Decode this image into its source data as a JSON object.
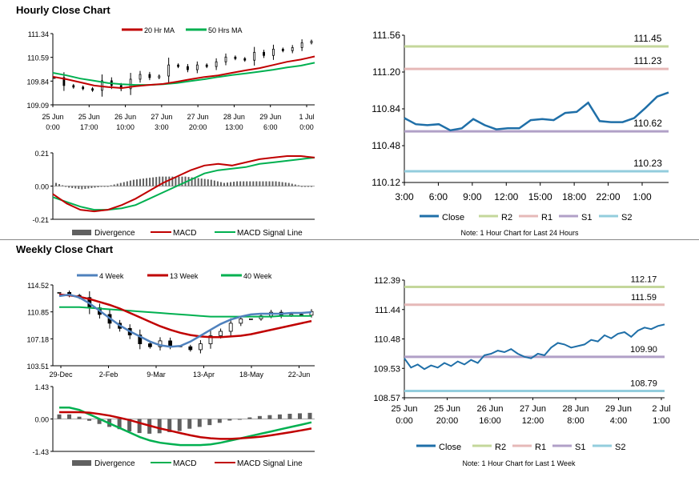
{
  "sections": {
    "hourly_title": "Hourly Close Chart",
    "weekly_title": "Weekly Close Chart"
  },
  "chart_data": [
    {
      "id": "hourly_price",
      "type": "line",
      "title": "Hourly Close Chart",
      "y_ticks": [
        "111.34",
        "110.59",
        "109.84",
        "109.09"
      ],
      "ylim": [
        109.09,
        111.34
      ],
      "x_ticks": [
        {
          "l1": "25 Jun",
          "l2": "0:00"
        },
        {
          "l1": "25 Jun",
          "l2": "17:00"
        },
        {
          "l1": "26 Jun",
          "l2": "10:00"
        },
        {
          "l1": "27 Jun",
          "l2": "3:00"
        },
        {
          "l1": "27 Jun",
          "l2": "20:00"
        },
        {
          "l1": "28 Jun",
          "l2": "13:00"
        },
        {
          "l1": "29 Jun",
          "l2": "6:00"
        },
        {
          "l1": "1 Jul",
          "l2": "0:00"
        }
      ],
      "legend": [
        "20 Hr MA",
        "50 Hrs MA"
      ],
      "colors": {
        "ma20": "#c00000",
        "ma50": "#00b050",
        "candle": "#000000"
      },
      "series": [
        {
          "name": "20 Hr MA",
          "values": [
            109.98,
            109.9,
            109.8,
            109.7,
            109.65,
            109.62,
            109.68,
            109.72,
            109.75,
            109.82,
            109.9,
            109.97,
            110.02,
            110.1,
            110.18,
            110.25,
            110.35,
            110.45,
            110.52,
            110.62
          ]
        },
        {
          "name": "50 Hrs MA",
          "values": [
            110.1,
            110.02,
            109.92,
            109.85,
            109.78,
            109.74,
            109.72,
            109.72,
            109.74,
            109.78,
            109.84,
            109.9,
            109.97,
            110.03,
            110.08,
            110.14,
            110.2,
            110.27,
            110.33,
            110.42
          ]
        },
        {
          "name": "Close",
          "values": [
            109.95,
            109.7,
            109.65,
            109.6,
            109.55,
            109.85,
            109.7,
            109.6,
            109.9,
            110.05,
            109.95,
            110.0,
            110.35,
            110.3,
            110.2,
            110.35,
            110.3,
            110.45,
            110.6,
            110.55,
            110.5,
            110.75,
            110.65,
            110.85,
            110.8,
            110.9,
            111.05,
            111.1
          ]
        }
      ]
    },
    {
      "id": "hourly_macd",
      "type": "line",
      "y_ticks": [
        "0.21",
        "0.00",
        "-0.21"
      ],
      "ylim": [
        -0.21,
        0.21
      ],
      "legend": [
        "Divergence",
        "MACD",
        "MACD Signal Line"
      ],
      "colors": {
        "divergence": "#606060",
        "macd": "#c00000",
        "signal": "#00b050"
      },
      "series": [
        {
          "name": "MACD",
          "values": [
            -0.05,
            -0.11,
            -0.15,
            -0.16,
            -0.15,
            -0.12,
            -0.08,
            -0.03,
            0.02,
            0.06,
            0.1,
            0.13,
            0.14,
            0.13,
            0.15,
            0.17,
            0.18,
            0.19,
            0.19,
            0.18
          ]
        },
        {
          "name": "MACD Signal Line",
          "values": [
            -0.07,
            -0.1,
            -0.13,
            -0.15,
            -0.15,
            -0.14,
            -0.12,
            -0.08,
            -0.04,
            0.0,
            0.04,
            0.08,
            0.1,
            0.11,
            0.12,
            0.14,
            0.15,
            0.16,
            0.17,
            0.18
          ]
        },
        {
          "name": "Divergence",
          "values": [
            0.02,
            -0.01,
            -0.02,
            -0.01,
            0.0,
            0.02,
            0.04,
            0.05,
            0.06,
            0.06,
            0.06,
            0.05,
            0.04,
            0.02,
            0.03,
            0.03,
            0.03,
            0.03,
            0.02,
            0.0
          ]
        }
      ]
    },
    {
      "id": "hourly_levels",
      "type": "line",
      "y_ticks": [
        "111.56",
        "111.20",
        "110.84",
        "110.48",
        "110.12"
      ],
      "ylim": [
        110.12,
        111.56
      ],
      "x_ticks": [
        "3:00",
        "6:00",
        "9:00",
        "12:00",
        "15:00",
        "18:00",
        "22:00",
        "1:00"
      ],
      "levels": [
        {
          "name": "R2",
          "value": 111.45,
          "label": "111.45",
          "color": "#c4d79b"
        },
        {
          "name": "R1",
          "value": 111.23,
          "label": "111.23",
          "color": "#e6b9b8"
        },
        {
          "name": "S1",
          "value": 110.62,
          "label": "110.62",
          "color": "#b1a0c7"
        },
        {
          "name": "S2",
          "value": 110.23,
          "label": "110.23",
          "color": "#93cddd"
        }
      ],
      "close": [
        110.75,
        110.69,
        110.68,
        110.69,
        110.63,
        110.65,
        110.74,
        110.68,
        110.64,
        110.65,
        110.65,
        110.73,
        110.74,
        110.73,
        110.8,
        110.81,
        110.9,
        110.72,
        110.71,
        110.71,
        110.75,
        110.85,
        110.96,
        111.0
      ],
      "close_color": "#1f6fa8",
      "legend": [
        "Close",
        "R2",
        "R1",
        "S1",
        "S2"
      ],
      "note": "Note: 1 Hour Chart for Last 24 Hours"
    },
    {
      "id": "weekly_price",
      "type": "line",
      "title": "Weekly Close Chart",
      "y_ticks": [
        "114.52",
        "110.85",
        "107.18",
        "103.51"
      ],
      "ylim": [
        103.51,
        114.52
      ],
      "x_ticks": [
        "29-Dec",
        "2-Feb",
        "9-Mar",
        "13-Apr",
        "18-May",
        "22-Jun"
      ],
      "legend": [
        "4 Week",
        "13 Week",
        "40 Week"
      ],
      "colors": {
        "w4": "#4f81bd",
        "w13": "#c00000",
        "w40": "#00b050",
        "candle": "#000000"
      },
      "series": [
        {
          "name": "4 Week",
          "values": [
            113.0,
            113.2,
            112.8,
            112.0,
            111.0,
            110.0,
            109.0,
            108.2,
            107.5,
            106.8,
            106.3,
            106.1,
            106.2,
            106.8,
            107.6,
            108.4,
            109.2,
            109.8,
            110.2,
            110.5,
            110.6,
            110.6,
            110.6,
            110.7,
            110.7,
            110.8
          ]
        },
        {
          "name": "13 Week",
          "values": [
            113.2,
            113.1,
            112.9,
            112.6,
            112.2,
            111.8,
            111.3,
            110.7,
            110.1,
            109.5,
            108.9,
            108.4,
            108.0,
            107.7,
            107.5,
            107.4,
            107.4,
            107.5,
            107.6,
            107.8,
            108.1,
            108.4,
            108.7,
            109.0,
            109.3,
            109.6
          ]
        },
        {
          "name": "40 Week",
          "values": [
            111.5,
            111.5,
            111.5,
            111.4,
            111.3,
            111.2,
            111.1,
            111.0,
            110.9,
            110.8,
            110.7,
            110.6,
            110.5,
            110.4,
            110.3,
            110.2,
            110.2,
            110.2,
            110.2,
            110.2,
            110.2,
            110.2,
            110.3,
            110.3,
            110.3,
            110.3
          ]
        },
        {
          "name": "Close",
          "values": [
            113.5,
            113.1,
            112.8,
            111.4,
            110.5,
            109.3,
            108.6,
            107.7,
            106.5,
            106.1,
            106.9,
            106.2,
            106.1,
            105.7,
            106.5,
            107.6,
            108.2,
            109.3,
            109.9,
            109.9,
            110.3,
            110.8,
            110.3,
            110.5,
            110.4,
            110.9
          ]
        }
      ]
    },
    {
      "id": "weekly_macd",
      "type": "line",
      "y_ticks": [
        "1.43",
        "0.00",
        "-1.43"
      ],
      "ylim": [
        -1.43,
        1.43
      ],
      "legend": [
        "Divergence",
        "MACD",
        "MACD Signal Line"
      ],
      "colors": {
        "divergence": "#606060",
        "macd": "#00b050",
        "signal": "#c00000"
      },
      "series": [
        {
          "name": "MACD",
          "values": [
            0.5,
            0.5,
            0.4,
            0.2,
            0.0,
            -0.2,
            -0.4,
            -0.6,
            -0.8,
            -0.95,
            -1.05,
            -1.1,
            -1.15,
            -1.15,
            -1.15,
            -1.12,
            -1.05,
            -0.95,
            -0.85,
            -0.75,
            -0.65,
            -0.55,
            -0.45,
            -0.35,
            -0.25,
            -0.15
          ]
        },
        {
          "name": "MACD Signal Line",
          "values": [
            0.3,
            0.3,
            0.3,
            0.28,
            0.22,
            0.15,
            0.05,
            -0.05,
            -0.18,
            -0.3,
            -0.42,
            -0.52,
            -0.62,
            -0.72,
            -0.8,
            -0.85,
            -0.88,
            -0.88,
            -0.85,
            -0.82,
            -0.78,
            -0.72,
            -0.65,
            -0.58,
            -0.5,
            -0.42
          ]
        },
        {
          "name": "Divergence",
          "values": [
            0.2,
            0.2,
            0.1,
            -0.08,
            -0.22,
            -0.35,
            -0.45,
            -0.55,
            -0.62,
            -0.65,
            -0.63,
            -0.58,
            -0.53,
            -0.43,
            -0.35,
            -0.27,
            -0.17,
            -0.07,
            0.0,
            0.07,
            0.13,
            0.17,
            0.2,
            0.23,
            0.25,
            0.27
          ]
        }
      ]
    },
    {
      "id": "weekly_levels",
      "type": "line",
      "y_ticks": [
        "112.39",
        "111.44",
        "110.48",
        "109.53",
        "108.57"
      ],
      "ylim": [
        108.57,
        112.39
      ],
      "x_ticks": [
        {
          "l1": "25 Jun",
          "l2": "0:00"
        },
        {
          "l1": "25 Jun",
          "l2": "20:00"
        },
        {
          "l1": "26 Jun",
          "l2": "16:00"
        },
        {
          "l1": "27 Jun",
          "l2": "12:00"
        },
        {
          "l1": "28 Jun",
          "l2": "8:00"
        },
        {
          "l1": "29 Jun",
          "l2": "4:00"
        },
        {
          "l1": "2 Jul",
          "l2": "1:00"
        }
      ],
      "levels": [
        {
          "name": "R2",
          "value": 112.17,
          "label": "112.17",
          "color": "#c4d79b"
        },
        {
          "name": "R1",
          "value": 111.59,
          "label": "111.59",
          "color": "#e6b9b8"
        },
        {
          "name": "S1",
          "value": 109.9,
          "label": "109.90",
          "color": "#b1a0c7"
        },
        {
          "name": "S2",
          "value": 108.79,
          "label": "108.79",
          "color": "#93cddd"
        }
      ],
      "close": [
        109.85,
        109.55,
        109.65,
        109.5,
        109.62,
        109.55,
        109.7,
        109.6,
        109.75,
        109.65,
        109.8,
        109.7,
        109.95,
        110.0,
        110.1,
        110.05,
        110.15,
        110.0,
        109.9,
        109.85,
        110.0,
        109.95,
        110.2,
        110.35,
        110.3,
        110.2,
        110.25,
        110.3,
        110.45,
        110.4,
        110.6,
        110.5,
        110.65,
        110.7,
        110.55,
        110.75,
        110.85,
        110.8,
        110.9,
        110.95
      ]
    }
  ]
}
